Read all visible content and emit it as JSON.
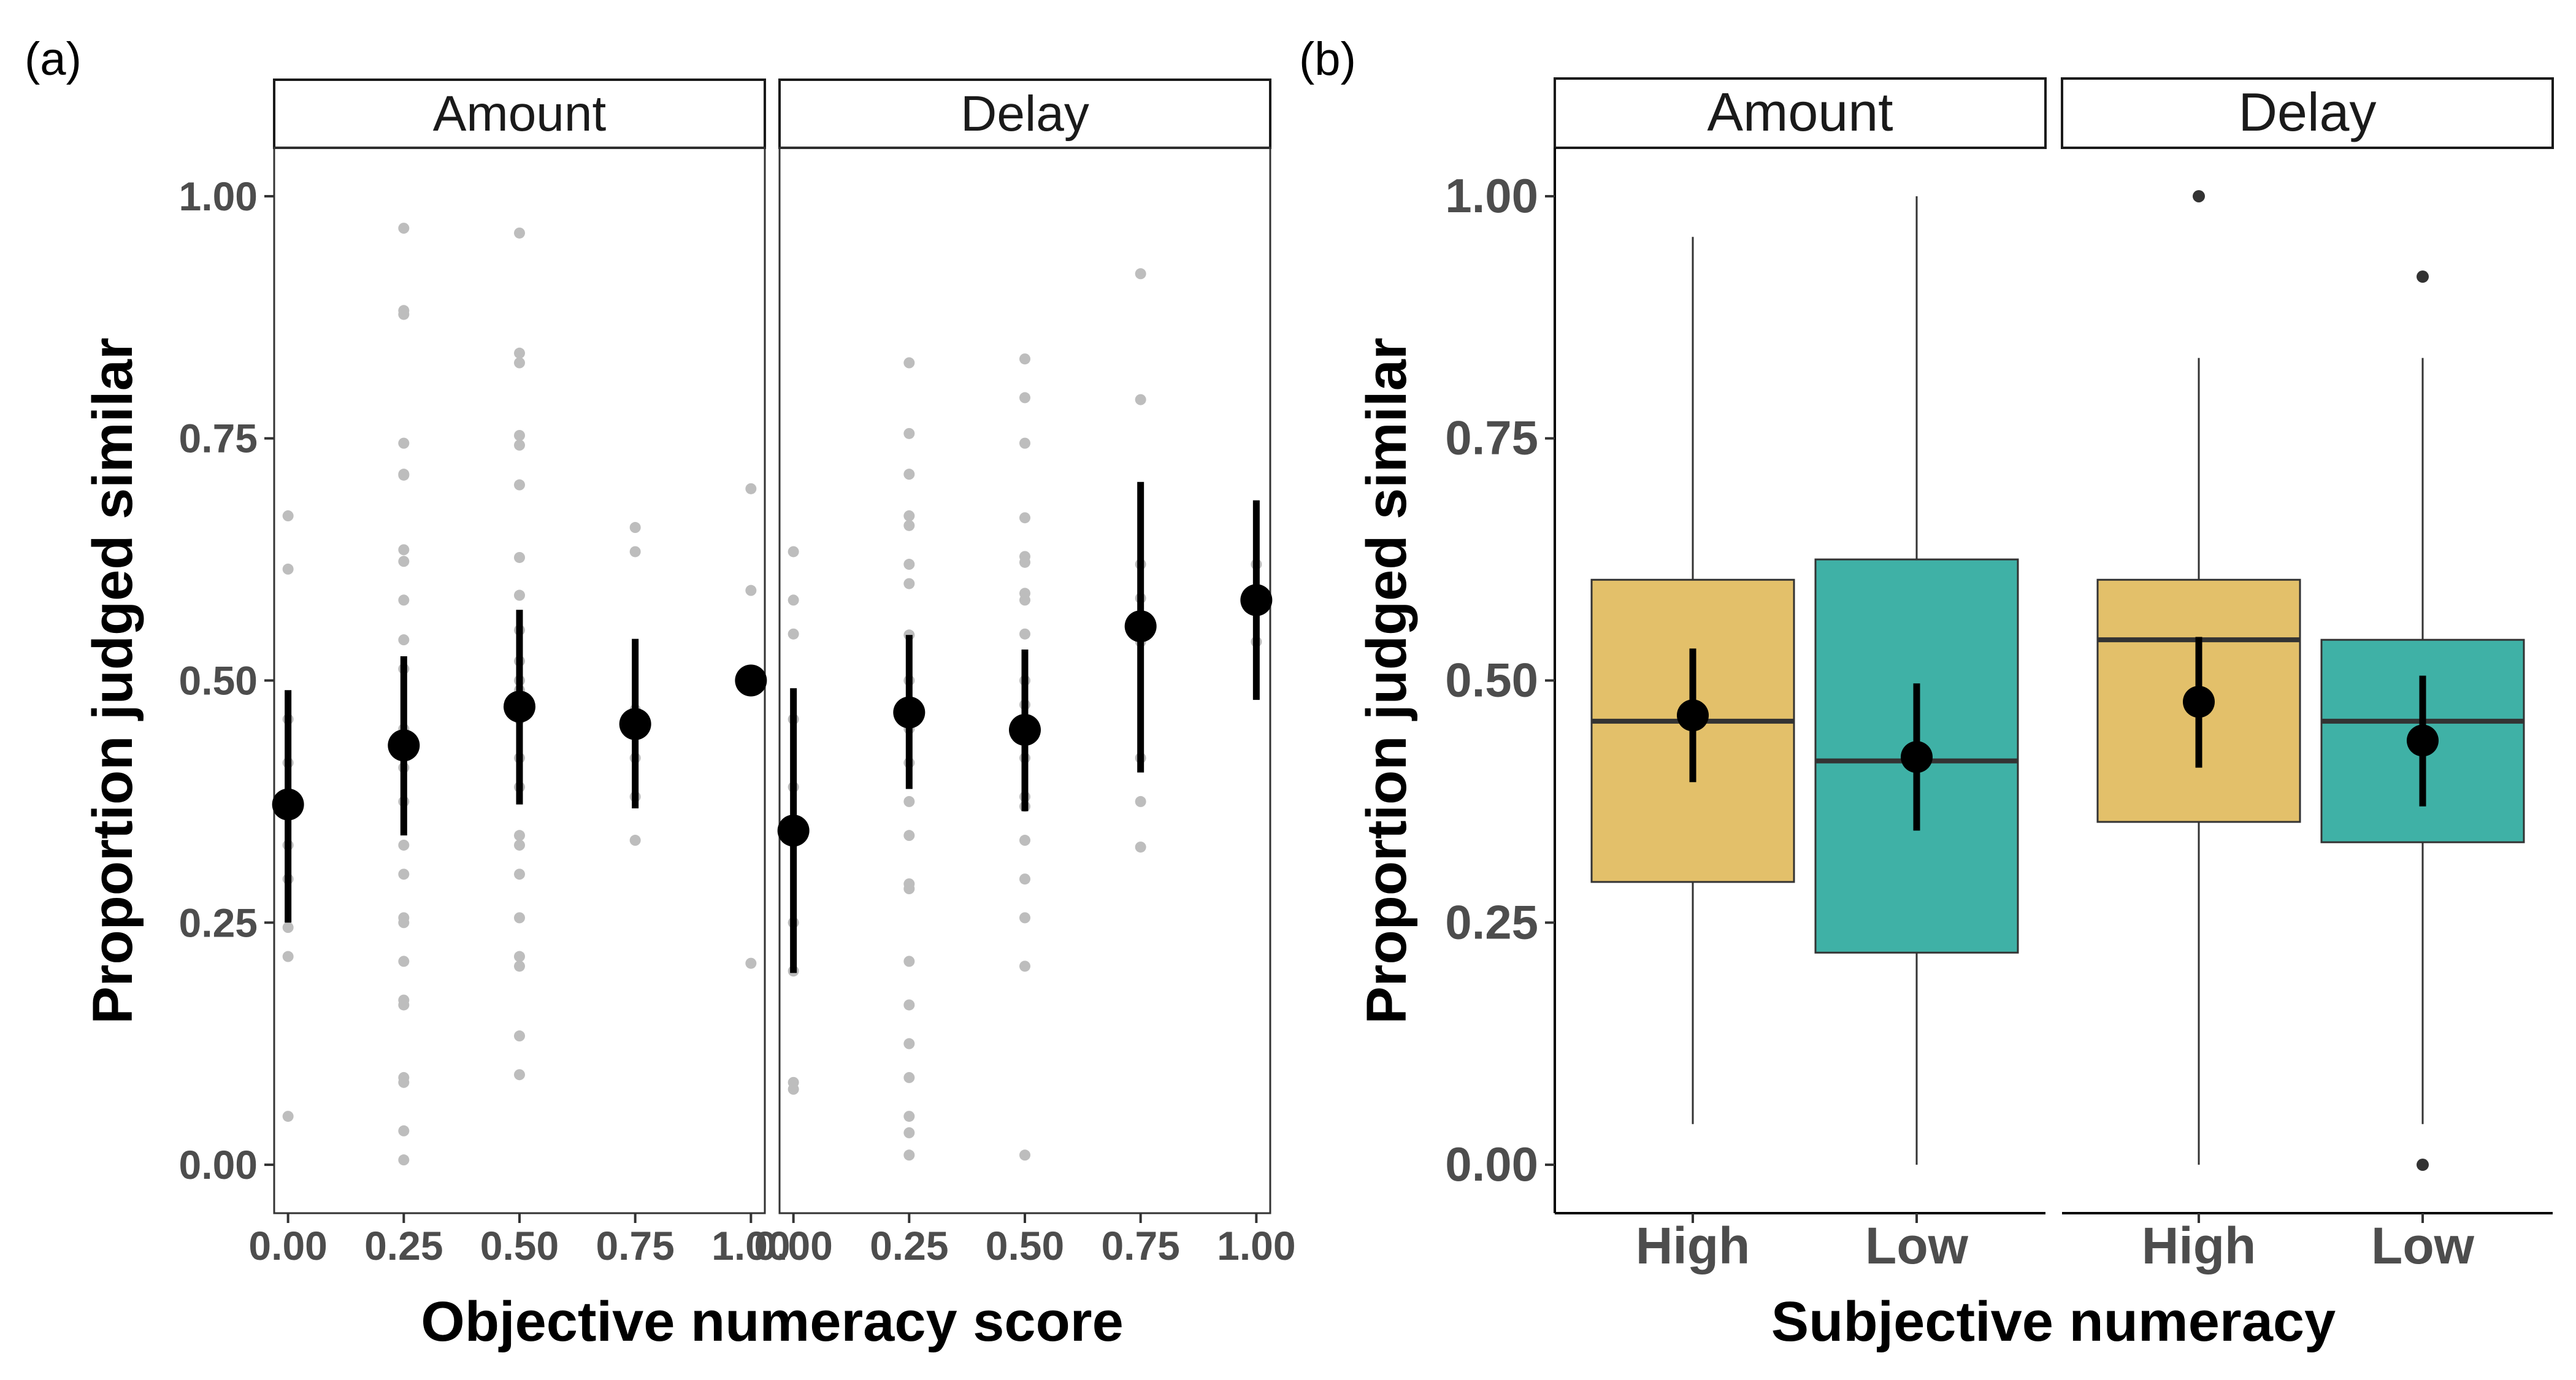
{
  "chart_data": [
    {
      "type": "scatter",
      "panel_tag": "(a)",
      "facets": [
        "Amount",
        "Delay"
      ],
      "xlabel": "Objective numeracy score",
      "ylabel": "Proportion judged similar",
      "x_ticks": [
        "0.00",
        "0.25",
        "0.50",
        "0.75",
        "1.00"
      ],
      "y_ticks": [
        "0.00",
        "0.25",
        "0.50",
        "0.75",
        "1.00"
      ],
      "xlim": [
        -0.03,
        1.03
      ],
      "ylim": [
        -0.05,
        1.05
      ],
      "colors": {
        "points": "#bdbdbd",
        "means": "#000000"
      },
      "series": [
        {
          "facet": "Amount",
          "points": [
            [
              0,
              0.67
            ],
            [
              0,
              0.615
            ],
            [
              0,
              0.46
            ],
            [
              0,
              0.415
            ],
            [
              0,
              0.33
            ],
            [
              0,
              0.295
            ],
            [
              0,
              0.245
            ],
            [
              0,
              0.215
            ],
            [
              0,
              0.05
            ],
            [
              0.25,
              0.967
            ],
            [
              0.25,
              0.882
            ],
            [
              0.25,
              0.878
            ],
            [
              0.25,
              0.745
            ],
            [
              0.25,
              0.713
            ],
            [
              0.25,
              0.712
            ],
            [
              0.25,
              0.635
            ],
            [
              0.25,
              0.623
            ],
            [
              0.25,
              0.583
            ],
            [
              0.25,
              0.542
            ],
            [
              0.25,
              0.512
            ],
            [
              0.25,
              0.45
            ],
            [
              0.25,
              0.41
            ],
            [
              0.25,
              0.375
            ],
            [
              0.25,
              0.33
            ],
            [
              0.25,
              0.3
            ],
            [
              0.25,
              0.255
            ],
            [
              0.25,
              0.25
            ],
            [
              0.25,
              0.21
            ],
            [
              0.25,
              0.17
            ],
            [
              0.25,
              0.165
            ],
            [
              0.25,
              0.09
            ],
            [
              0.25,
              0.085
            ],
            [
              0.25,
              0.035
            ],
            [
              0.25,
              0.005
            ],
            [
              0.5,
              0.962
            ],
            [
              0.5,
              0.838
            ],
            [
              0.5,
              0.828
            ],
            [
              0.5,
              0.753
            ],
            [
              0.5,
              0.743
            ],
            [
              0.5,
              0.702
            ],
            [
              0.5,
              0.627
            ],
            [
              0.5,
              0.588
            ],
            [
              0.5,
              0.552
            ],
            [
              0.5,
              0.52
            ],
            [
              0.5,
              0.5
            ],
            [
              0.5,
              0.49
            ],
            [
              0.5,
              0.46
            ],
            [
              0.5,
              0.42
            ],
            [
              0.5,
              0.39
            ],
            [
              0.5,
              0.34
            ],
            [
              0.5,
              0.33
            ],
            [
              0.5,
              0.3
            ],
            [
              0.5,
              0.255
            ],
            [
              0.5,
              0.215
            ],
            [
              0.5,
              0.205
            ],
            [
              0.5,
              0.133
            ],
            [
              0.5,
              0.093
            ],
            [
              0.75,
              0.658
            ],
            [
              0.75,
              0.633
            ],
            [
              0.75,
              0.47
            ],
            [
              0.75,
              0.42
            ],
            [
              0.75,
              0.38
            ],
            [
              0.75,
              0.335
            ],
            [
              1,
              0.698
            ],
            [
              1,
              0.593
            ],
            [
              1,
              0.5
            ],
            [
              1,
              0.208
            ]
          ],
          "means": [
            {
              "x": 0,
              "y": 0.372,
              "lo": 0.25,
              "hi": 0.49
            },
            {
              "x": 0.25,
              "y": 0.433,
              "lo": 0.34,
              "hi": 0.525
            },
            {
              "x": 0.5,
              "y": 0.473,
              "lo": 0.372,
              "hi": 0.573
            },
            {
              "x": 0.75,
              "y": 0.455,
              "lo": 0.368,
              "hi": 0.543
            },
            {
              "x": 1,
              "y": 0.5,
              "lo": 0.5,
              "hi": 0.5
            }
          ]
        },
        {
          "facet": "Delay",
          "points": [
            [
              0,
              0.633
            ],
            [
              0,
              0.583
            ],
            [
              0,
              0.548
            ],
            [
              0,
              0.46
            ],
            [
              0,
              0.39
            ],
            [
              0,
              0.333
            ],
            [
              0,
              0.25
            ],
            [
              0,
              0.2
            ],
            [
              0,
              0.085
            ],
            [
              0,
              0.078
            ],
            [
              0.25,
              0.828
            ],
            [
              0.25,
              0.755
            ],
            [
              0.25,
              0.713
            ],
            [
              0.25,
              0.67
            ],
            [
              0.25,
              0.66
            ],
            [
              0.25,
              0.62
            ],
            [
              0.25,
              0.6
            ],
            [
              0.25,
              0.547
            ],
            [
              0.25,
              0.5
            ],
            [
              0.25,
              0.45
            ],
            [
              0.25,
              0.415
            ],
            [
              0.25,
              0.375
            ],
            [
              0.25,
              0.34
            ],
            [
              0.25,
              0.29
            ],
            [
              0.25,
              0.285
            ],
            [
              0.25,
              0.21
            ],
            [
              0.25,
              0.165
            ],
            [
              0.25,
              0.125
            ],
            [
              0.25,
              0.09
            ],
            [
              0.25,
              0.05
            ],
            [
              0.25,
              0.033
            ],
            [
              0.25,
              0.01
            ],
            [
              0.5,
              0.832
            ],
            [
              0.5,
              0.792
            ],
            [
              0.5,
              0.745
            ],
            [
              0.5,
              0.668
            ],
            [
              0.5,
              0.628
            ],
            [
              0.5,
              0.622
            ],
            [
              0.5,
              0.59
            ],
            [
              0.5,
              0.583
            ],
            [
              0.5,
              0.548
            ],
            [
              0.5,
              0.5
            ],
            [
              0.5,
              0.475
            ],
            [
              0.5,
              0.45
            ],
            [
              0.5,
              0.42
            ],
            [
              0.5,
              0.38
            ],
            [
              0.5,
              0.37
            ],
            [
              0.5,
              0.335
            ],
            [
              0.5,
              0.295
            ],
            [
              0.5,
              0.255
            ],
            [
              0.5,
              0.205
            ],
            [
              0.5,
              0.01
            ],
            [
              0.75,
              0.92
            ],
            [
              0.75,
              0.79
            ],
            [
              0.75,
              0.62
            ],
            [
              0.75,
              0.585
            ],
            [
              0.75,
              0.54
            ],
            [
              0.75,
              0.42
            ],
            [
              0.75,
              0.375
            ],
            [
              0.75,
              0.328
            ],
            [
              1,
              0.62
            ],
            [
              1,
              0.58
            ],
            [
              1,
              0.54
            ]
          ],
          "means": [
            {
              "x": 0,
              "y": 0.345,
              "lo": 0.198,
              "hi": 0.492
            },
            {
              "x": 0.25,
              "y": 0.467,
              "lo": 0.388,
              "hi": 0.547
            },
            {
              "x": 0.5,
              "y": 0.449,
              "lo": 0.365,
              "hi": 0.532
            },
            {
              "x": 0.75,
              "y": 0.556,
              "lo": 0.405,
              "hi": 0.705
            },
            {
              "x": 1,
              "y": 0.583,
              "lo": 0.48,
              "hi": 0.686
            }
          ]
        }
      ]
    },
    {
      "type": "box",
      "panel_tag": "(b)",
      "facets": [
        "Amount",
        "Delay"
      ],
      "categories": [
        "High",
        "Low"
      ],
      "xlabel": "Subjective numeracy",
      "ylabel": "Proportion judged similar",
      "y_ticks": [
        "0.00",
        "0.25",
        "0.50",
        "0.75",
        "1.00"
      ],
      "ylim": [
        -0.05,
        1.05
      ],
      "colors": {
        "High": "#e3c06a",
        "Low": "#3fb1a6",
        "means": "#000000"
      },
      "series": [
        {
          "facet": "Amount",
          "boxes": [
            {
              "category": "High",
              "whisker_low": 0.042,
              "q1": 0.292,
              "median": 0.458,
              "q3": 0.604,
              "whisker_high": 0.958,
              "outliers": [],
              "mean": 0.464,
              "ci_low": 0.395,
              "ci_high": 0.533
            },
            {
              "category": "Low",
              "whisker_low": 0.0,
              "q1": 0.219,
              "median": 0.417,
              "q3": 0.625,
              "whisker_high": 1.0,
              "outliers": [],
              "mean": 0.421,
              "ci_low": 0.345,
              "ci_high": 0.497
            }
          ]
        },
        {
          "facet": "Delay",
          "boxes": [
            {
              "category": "High",
              "whisker_low": 0.0,
              "q1": 0.354,
              "median": 0.542,
              "q3": 0.604,
              "whisker_high": 0.833,
              "outliers": [
                1.0
              ],
              "mean": 0.478,
              "ci_low": 0.41,
              "ci_high": 0.545
            },
            {
              "category": "Low",
              "whisker_low": 0.042,
              "q1": 0.333,
              "median": 0.458,
              "q3": 0.542,
              "whisker_high": 0.833,
              "outliers": [
                0.917,
                0.0
              ],
              "mean": 0.438,
              "ci_low": 0.37,
              "ci_high": 0.505
            }
          ]
        }
      ]
    }
  ]
}
